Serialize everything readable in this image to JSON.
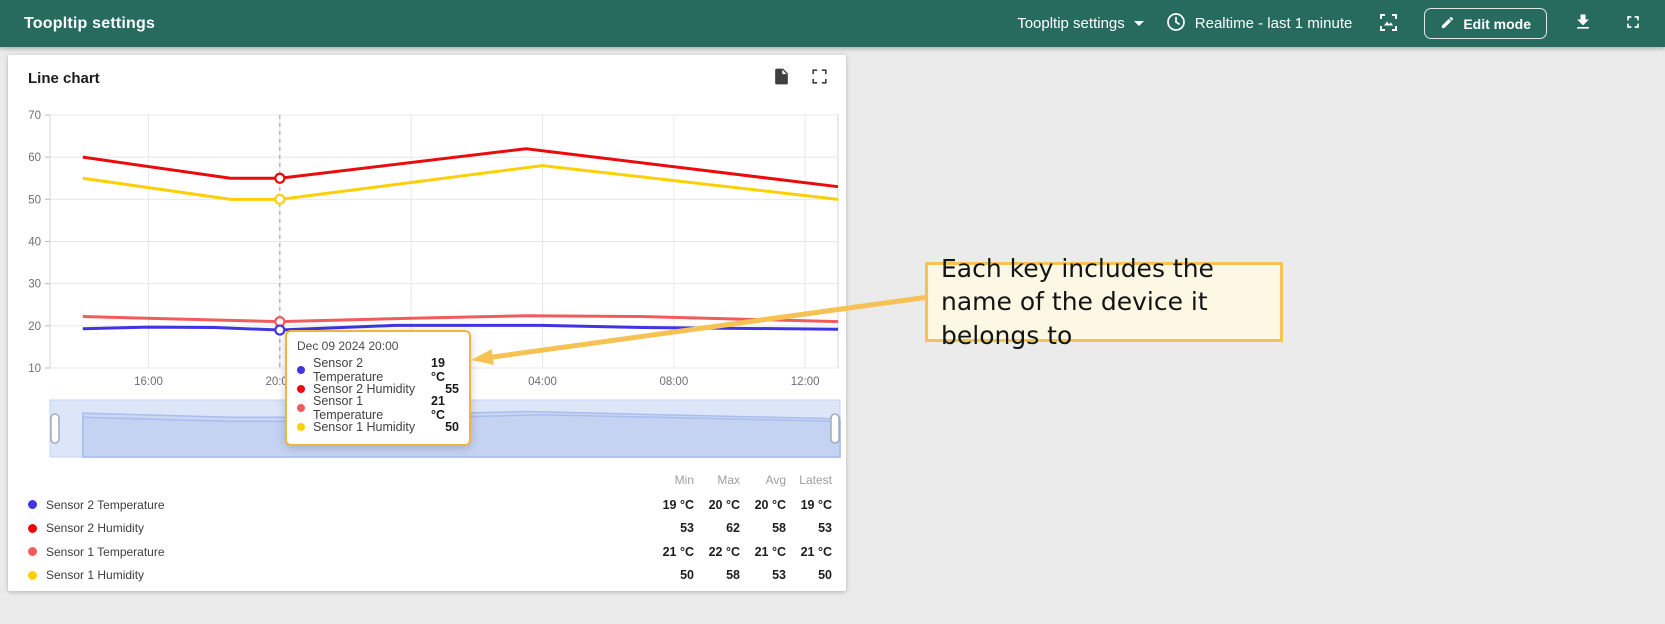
{
  "header": {
    "title": "Toopltip settings",
    "dashboard_select": "Toopltip settings",
    "time_window": "Realtime - last 1 minute",
    "edit_button": "Edit mode"
  },
  "widget": {
    "title": "Line chart"
  },
  "colors": {
    "appbar": "#266b5e",
    "sensor2_temperature": "#4135e0",
    "sensor2_humidity": "#ea0c0c",
    "sensor1_temperature": "#f25b5b",
    "sensor1_humidity": "#fdd003",
    "annotation_border": "#f5c253",
    "tooltip_border": "#efb63e"
  },
  "tooltip": {
    "timestamp": "Dec 09 2024 20:00",
    "rows": [
      {
        "label": "Sensor 2 Temperature",
        "value": "19 °C",
        "color": "#4135e0"
      },
      {
        "label": "Sensor 2 Humidity",
        "value": "55",
        "color": "#ea0c0c"
      },
      {
        "label": "Sensor 1 Temperature",
        "value": "21 °C",
        "color": "#f25b5b"
      },
      {
        "label": "Sensor 1 Humidity",
        "value": "50",
        "color": "#fdd003"
      }
    ]
  },
  "annotation": {
    "text": "Each key includes the name of the device it belongs to"
  },
  "legend": {
    "headers": [
      "Min",
      "Max",
      "Avg",
      "Latest"
    ],
    "rows": [
      {
        "label": "Sensor 2 Temperature",
        "color": "#4135e0",
        "min": "19 °C",
        "max": "20 °C",
        "avg": "20 °C",
        "latest": "19 °C"
      },
      {
        "label": "Sensor 2 Humidity",
        "color": "#ea0c0c",
        "min": "53",
        "max": "62",
        "avg": "58",
        "latest": "53"
      },
      {
        "label": "Sensor 1 Temperature",
        "color": "#f25b5b",
        "min": "21 °C",
        "max": "22 °C",
        "avg": "21 °C",
        "latest": "21 °C"
      },
      {
        "label": "Sensor 1 Humidity",
        "color": "#fdd003",
        "min": "50",
        "max": "58",
        "avg": "53",
        "latest": "50"
      }
    ]
  },
  "chart_data": {
    "type": "line",
    "title": "Line chart",
    "x_axis": {
      "range": [
        13,
        37
      ],
      "ticks": [
        16,
        20,
        24,
        28,
        32,
        36
      ],
      "tick_labels": [
        "16:00",
        "20:00",
        "00:00",
        "04:00",
        "08:00",
        "12:00"
      ]
    },
    "y_axis": {
      "range": [
        10,
        70
      ],
      "ticks": [
        10,
        20,
        30,
        40,
        50,
        60,
        70
      ]
    },
    "grid": true,
    "highlight_time": 20,
    "highlight_label": "Dec 09 2024 20:00",
    "series": [
      {
        "name": "Sensor 2 Humidity",
        "color": "#ea0c0c",
        "points": [
          [
            14,
            60
          ],
          [
            18.5,
            55
          ],
          [
            20,
            55
          ],
          [
            27.5,
            62
          ],
          [
            37,
            53
          ]
        ]
      },
      {
        "name": "Sensor 1 Humidity",
        "color": "#fdd003",
        "points": [
          [
            14,
            55
          ],
          [
            18.5,
            50
          ],
          [
            20,
            50
          ],
          [
            28,
            58
          ],
          [
            37,
            50
          ]
        ]
      },
      {
        "name": "Sensor 1 Temperature",
        "color": "#f25b5b",
        "points": [
          [
            14,
            22.2
          ],
          [
            17,
            21.6
          ],
          [
            20,
            21
          ],
          [
            24,
            21.8
          ],
          [
            27.5,
            22.4
          ],
          [
            31,
            22.2
          ],
          [
            37,
            21
          ]
        ]
      },
      {
        "name": "Sensor 2 Temperature",
        "color": "#4135e0",
        "points": [
          [
            14,
            19.3
          ],
          [
            16,
            19.7
          ],
          [
            18,
            19.6
          ],
          [
            20,
            19
          ],
          [
            23.5,
            20.1
          ],
          [
            28,
            20.1
          ],
          [
            31,
            19.6
          ],
          [
            37,
            19.2
          ]
        ]
      }
    ]
  }
}
